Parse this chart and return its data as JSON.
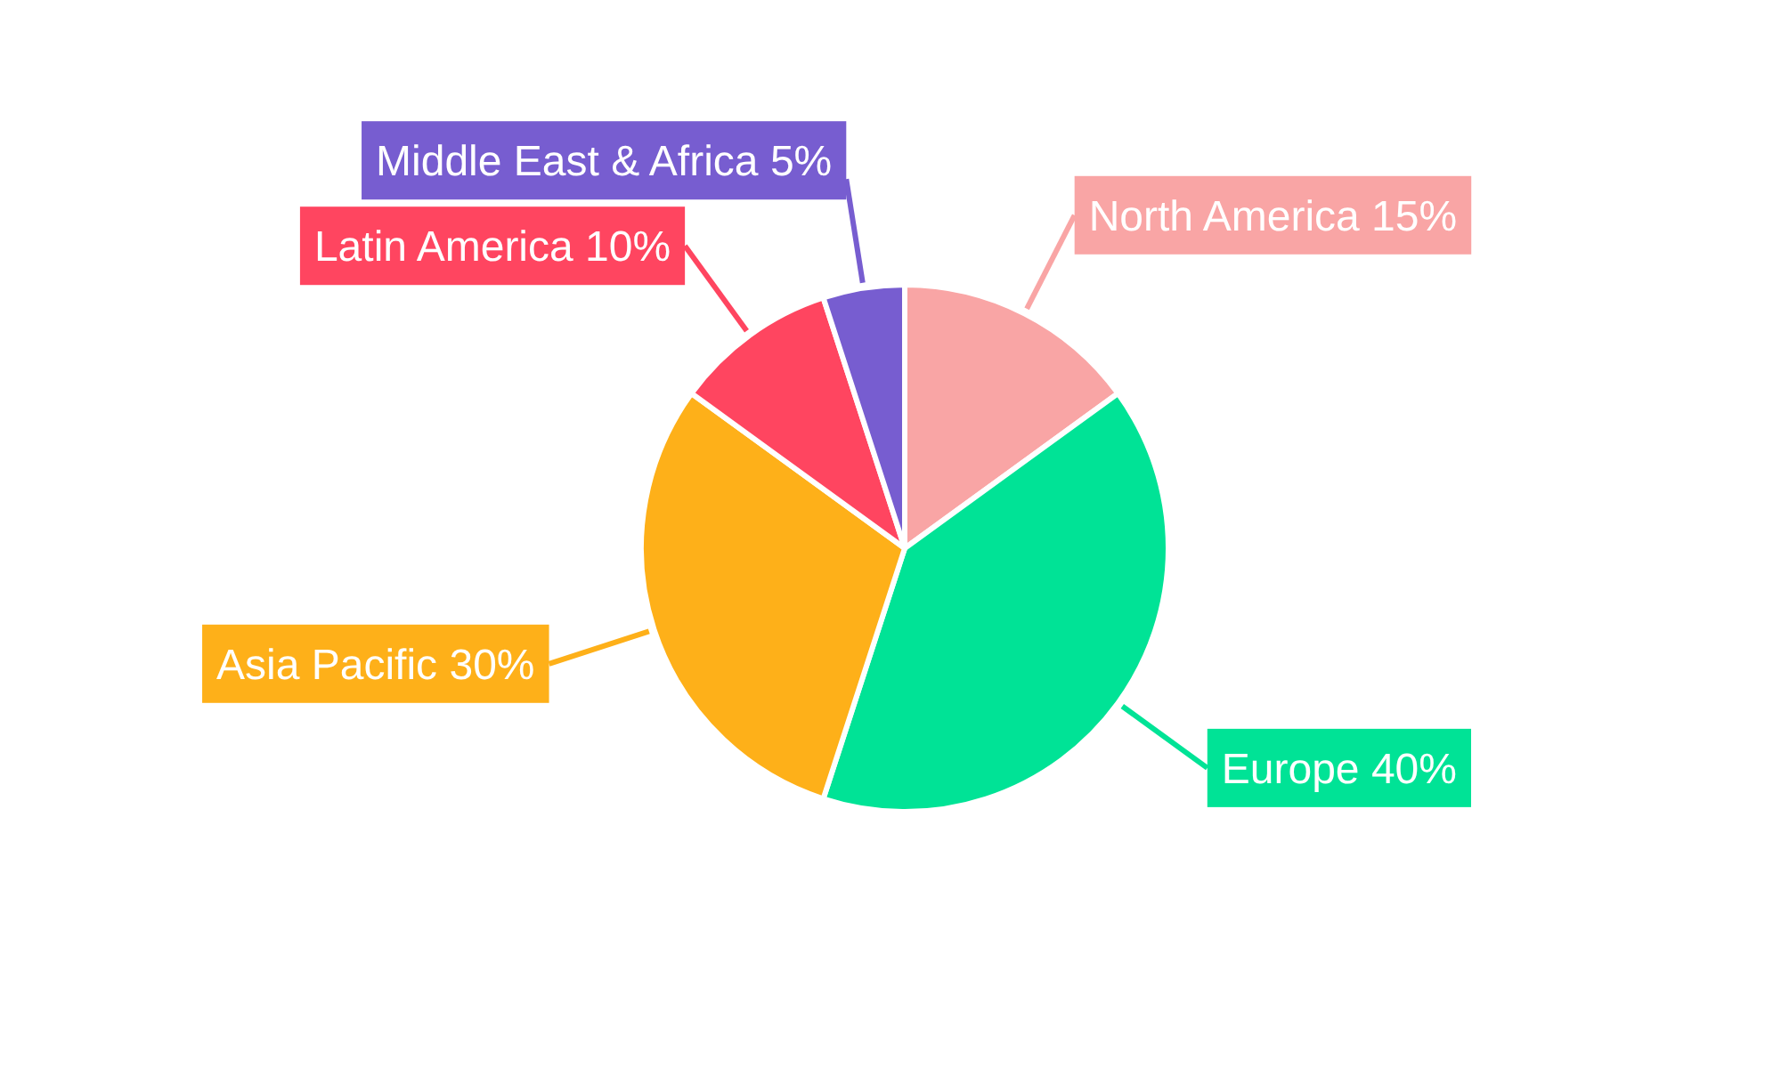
{
  "chart_data": {
    "type": "pie",
    "categories": [
      "North America",
      "Europe",
      "Asia Pacific",
      "Latin America",
      "Middle East & Africa"
    ],
    "values": [
      15,
      40,
      30,
      10,
      5
    ],
    "value_labels": [
      "15%",
      "40%",
      "30%",
      "10%",
      "5%"
    ],
    "colors": [
      "#f9a5a5",
      "#00e396",
      "#feb019",
      "#ff4560",
      "#775dd0"
    ],
    "legend": false
  }
}
